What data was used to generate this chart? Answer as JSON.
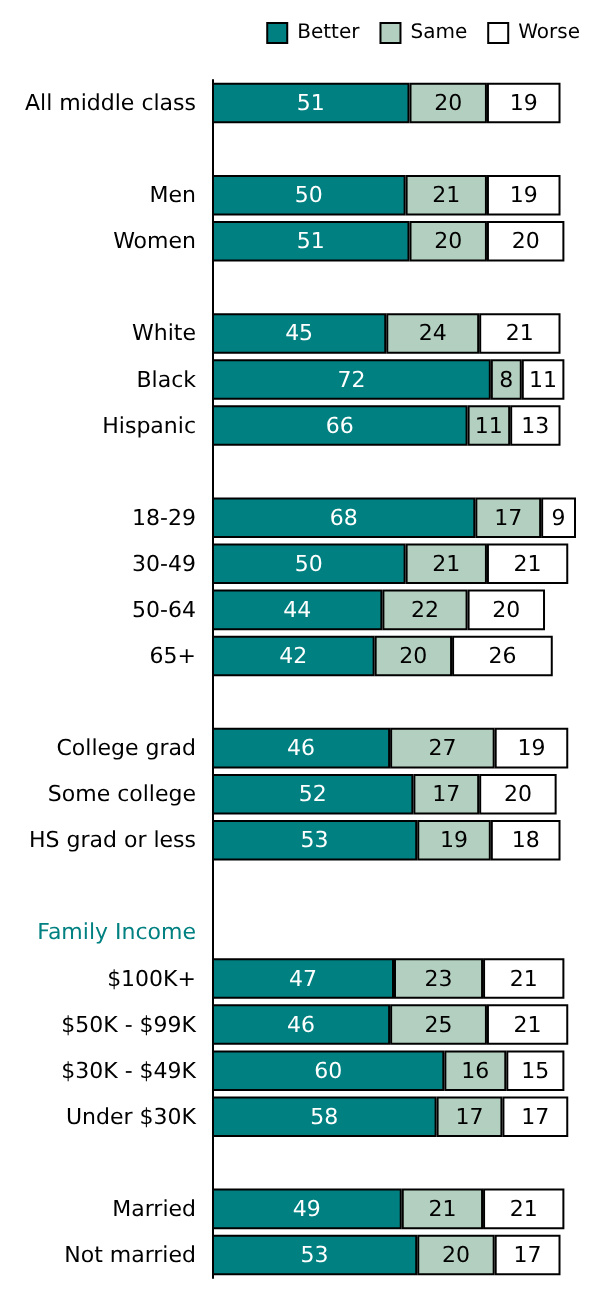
{
  "chart_data": {
    "type": "bar",
    "orientation": "horizontal",
    "stacked": true,
    "data_labels": true,
    "legend": "top right",
    "categories": [
      "All middle class",
      null,
      "Men",
      "Women",
      null,
      "White",
      "Black",
      "Hispanic",
      null,
      "18-29",
      "30-49",
      "50-64",
      "65+",
      null,
      "College grad",
      "Some college",
      "HS grad or less",
      null,
      "Family Income",
      "$100K+",
      "$50K - $99K",
      "$30K - $49K",
      "Under $30K",
      null,
      "Married",
      "Not married"
    ],
    "series": [
      {
        "name": "Better",
        "color": "#008080",
        "values": [
          51,
          null,
          50,
          51,
          null,
          45,
          72,
          66,
          null,
          68,
          50,
          44,
          42,
          null,
          46,
          52,
          53,
          null,
          null,
          47,
          46,
          60,
          58,
          null,
          49,
          53
        ]
      },
      {
        "name": "Same",
        "color": "#b3cfbf",
        "values": [
          20,
          null,
          21,
          20,
          null,
          24,
          8,
          11,
          null,
          17,
          21,
          22,
          20,
          null,
          27,
          17,
          19,
          null,
          null,
          23,
          25,
          16,
          17,
          null,
          21,
          20
        ]
      },
      {
        "name": "Worse",
        "color": "#ffffff",
        "values": [
          19,
          null,
          19,
          20,
          null,
          21,
          11,
          13,
          null,
          9,
          21,
          20,
          26,
          null,
          19,
          20,
          18,
          null,
          null,
          21,
          21,
          15,
          17,
          null,
          21,
          17
        ]
      }
    ]
  }
}
